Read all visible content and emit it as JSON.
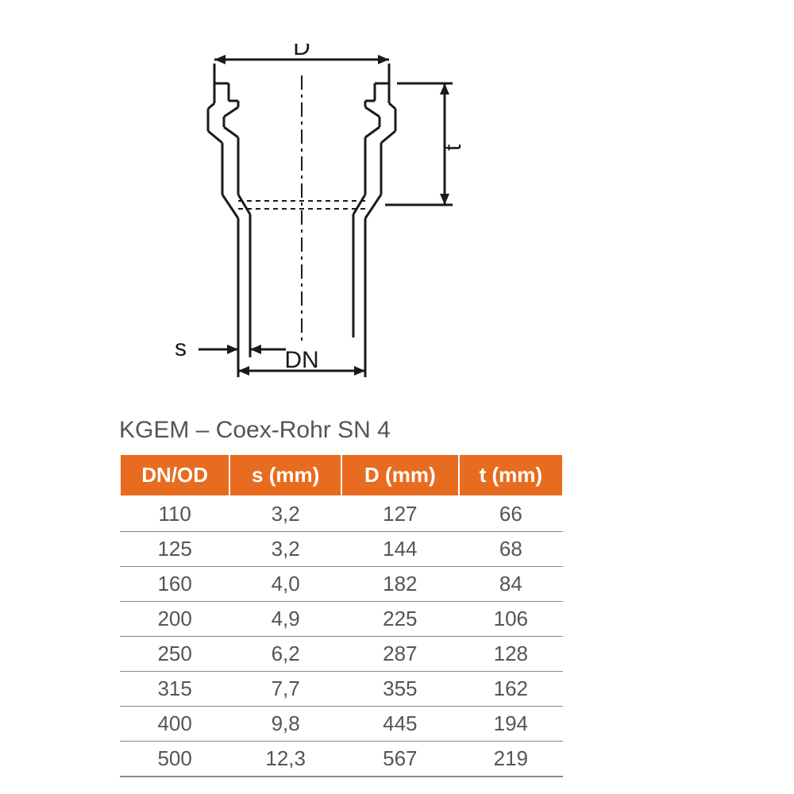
{
  "diagram": {
    "labels": {
      "D": "D",
      "t": "t",
      "s": "s",
      "DN": "DN"
    },
    "stroke_color": "#1a1a1a",
    "stroke_width": 3,
    "label_fontsize": 30,
    "arrow_size": 10
  },
  "table": {
    "title": "KGEM – Coex-Rohr SN 4",
    "title_fontsize": 30,
    "title_color": "#555555",
    "header_bg": "#e86c1f",
    "header_fg": "#ffffff",
    "header_fontsize": 26,
    "cell_fontsize": 26,
    "cell_fg": "#555555",
    "row_border_color": "#888888",
    "columns": [
      "DN/OD",
      "s (mm)",
      "D (mm)",
      "t (mm)"
    ],
    "rows": [
      [
        "110",
        "3,2",
        "127",
        "66"
      ],
      [
        "125",
        "3,2",
        "144",
        "68"
      ],
      [
        "160",
        "4,0",
        "182",
        "84"
      ],
      [
        "200",
        "4,9",
        "225",
        "106"
      ],
      [
        "250",
        "6,2",
        "287",
        "128"
      ],
      [
        "315",
        "7,7",
        "355",
        "162"
      ],
      [
        "400",
        "9,8",
        "445",
        "194"
      ],
      [
        "500",
        "12,3",
        "567",
        "219"
      ]
    ]
  }
}
